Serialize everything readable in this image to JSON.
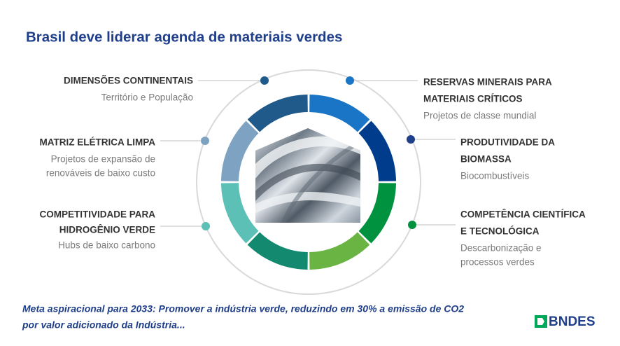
{
  "header": {
    "title": "Brasil deve liderar agenda de materiais verdes"
  },
  "items": [
    {
      "title": [
        "DIMENSÕES CONTINENTAIS"
      ],
      "subtitle": [
        "Território e População"
      ]
    },
    {
      "title": [
        "MATRIZ ELÉTRICA LIMPA"
      ],
      "subtitle": [
        "Projetos de expansão de",
        "renováveis de baixo custo"
      ]
    },
    {
      "title": [
        "COMPETITIVIDADE PARA",
        "HIDROGÊNIO VERDE"
      ],
      "subtitle": [
        "Hubs de baixo carbono"
      ]
    },
    {
      "title": [
        "RESERVAS MINERAIS PARA",
        "MATERIAIS CRÍTICOS"
      ],
      "subtitle": [
        "Projetos de classe mundial"
      ]
    },
    {
      "title": [
        "PRODUTIVIDADE DA",
        "BIOMASSA"
      ],
      "subtitle": [
        "Biocombustíveis"
      ]
    },
    {
      "title": [
        "COMPETÊNCIA CIENTÍFICA",
        "E TECNOLÓGICA"
      ],
      "subtitle": [
        "Descarbonização e",
        "processos verdes"
      ]
    }
  ],
  "footer": {
    "lines": [
      "Meta aspiracional para 2033: Promover a indústria verde, reduzindo em 30% a emissão de CO2",
      "por valor adicionado da Indústria..."
    ]
  },
  "logo": {
    "text": "BNDES"
  }
}
